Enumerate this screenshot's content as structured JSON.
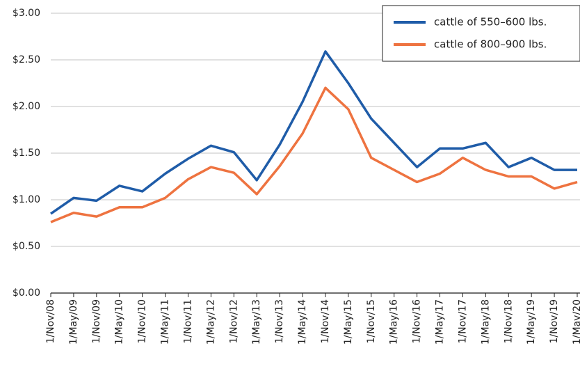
{
  "chart_data": {
    "type": "line",
    "categories": [
      "1/Nov/08",
      "1/May/09",
      "1/Nov/09",
      "1/May/10",
      "1/Nov/10",
      "1/May/11",
      "1/Nov/11",
      "1/May/12",
      "1/Nov/12",
      "1/May/13",
      "1/Nov/13",
      "1/May/14",
      "1/Nov/14",
      "1/May/15",
      "1/Nov/15",
      "1/May/16",
      "1/Nov/16",
      "1/May/17",
      "1/Nov/17",
      "1/May/18",
      "1/Nov/18",
      "1/May/19",
      "1/Nov/19",
      "1/May/20"
    ],
    "series": [
      {
        "name": "cattle of 550–600 lbs.",
        "color": "#1f5ca8",
        "values": [
          0.85,
          1.02,
          0.99,
          1.15,
          1.09,
          1.28,
          1.44,
          1.58,
          1.51,
          1.21,
          1.59,
          2.05,
          2.59,
          2.25,
          1.87,
          1.61,
          1.35,
          1.55,
          1.55,
          1.61,
          1.35,
          1.45,
          1.32,
          1.32
        ]
      },
      {
        "name": "cattle of 800–900 lbs.",
        "color": "#ee7340",
        "values": [
          0.76,
          0.86,
          0.82,
          0.92,
          0.92,
          1.02,
          1.22,
          1.35,
          1.29,
          1.06,
          1.36,
          1.71,
          2.2,
          1.97,
          1.45,
          1.32,
          1.19,
          1.28,
          1.45,
          1.32,
          1.25,
          1.25,
          1.12,
          1.19
        ]
      }
    ],
    "ylim": [
      0,
      3
    ],
    "yticks": [
      {
        "value": 0,
        "label": "$0.00"
      },
      {
        "value": 0.5,
        "label": "$0.50"
      },
      {
        "value": 1,
        "label": "$1.00"
      },
      {
        "value": 1.5,
        "label": "$1.50"
      },
      {
        "value": 2,
        "label": "$2.00"
      },
      {
        "value": 2.5,
        "label": "$2.50"
      },
      {
        "value": 3,
        "label": "$3.00"
      }
    ],
    "grid": true,
    "legend": "upper right"
  }
}
